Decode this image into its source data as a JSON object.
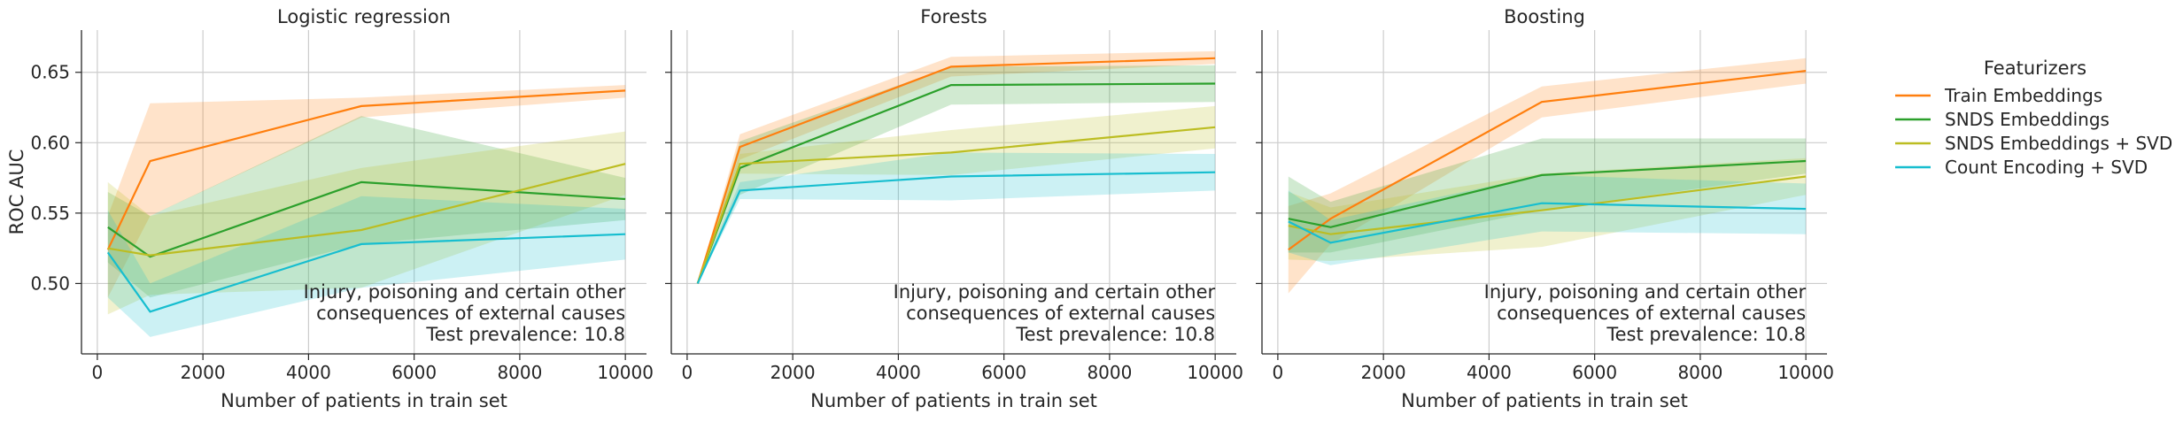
{
  "chart_data": {
    "type": "line",
    "ylabel": "ROC AUC",
    "xlabel": "Number of patients in train set",
    "ylim": [
      0.45,
      0.68
    ],
    "xlim": [
      -300,
      10400
    ],
    "xticks": [
      0,
      2000,
      4000,
      6000,
      8000,
      10000
    ],
    "yticks": [
      0.5,
      0.55,
      0.6,
      0.65
    ],
    "grid": true,
    "x": [
      200,
      1000,
      5000,
      10000
    ],
    "annotation_lines": [
      "Injury, poisoning and certain other",
      "consequences of external causes",
      "Test prevalence: 10.8"
    ],
    "legend": {
      "title": "Featurizers",
      "placement": "right",
      "entries": [
        {
          "name": "Train Embeddings",
          "color": "#ff7f0e"
        },
        {
          "name": "SNDS Embeddings",
          "color": "#2ca02c"
        },
        {
          "name": "SNDS Embeddings + SVD",
          "color": "#bcbd22"
        },
        {
          "name": "Count Encoding + SVD",
          "color": "#17becf"
        }
      ]
    },
    "panels": [
      {
        "title": "Logistic regression",
        "series": [
          {
            "name": "Train Embeddings",
            "values": [
              0.524,
              0.587,
              0.626,
              0.637
            ],
            "lower": [
              0.49,
              0.548,
              0.618,
              0.632
            ],
            "upper": [
              0.548,
              0.628,
              0.632,
              0.641
            ]
          },
          {
            "name": "SNDS Embeddings",
            "values": [
              0.54,
              0.519,
              0.572,
              0.56
            ],
            "lower": [
              0.515,
              0.49,
              0.528,
              0.545
            ],
            "upper": [
              0.565,
              0.548,
              0.619,
              0.575
            ]
          },
          {
            "name": "SNDS Embeddings + SVD",
            "values": [
              0.525,
              0.52,
              0.538,
              0.585
            ],
            "lower": [
              0.478,
              0.492,
              0.497,
              0.563
            ],
            "upper": [
              0.572,
              0.548,
              0.582,
              0.608
            ]
          },
          {
            "name": "Count Encoding + SVD",
            "values": [
              0.522,
              0.48,
              0.528,
              0.535
            ],
            "lower": [
              0.49,
              0.462,
              0.497,
              0.517
            ],
            "upper": [
              0.552,
              0.5,
              0.562,
              0.553
            ]
          }
        ]
      },
      {
        "title": "Forests",
        "series": [
          {
            "name": "Train Embeddings",
            "values": [
              0.5,
              0.597,
              0.654,
              0.66
            ],
            "lower": [
              0.5,
              0.588,
              0.647,
              0.656
            ],
            "upper": [
              0.5,
              0.606,
              0.661,
              0.665
            ]
          },
          {
            "name": "SNDS Embeddings",
            "values": [
              0.5,
              0.582,
              0.641,
              0.642
            ],
            "lower": [
              0.5,
              0.563,
              0.627,
              0.629
            ],
            "upper": [
              0.5,
              0.601,
              0.654,
              0.655
            ]
          },
          {
            "name": "SNDS Embeddings + SVD",
            "values": [
              0.5,
              0.585,
              0.593,
              0.611
            ],
            "lower": [
              0.5,
              0.578,
              0.577,
              0.596
            ],
            "upper": [
              0.5,
              0.592,
              0.609,
              0.626
            ]
          },
          {
            "name": "Count Encoding + SVD",
            "values": [
              0.5,
              0.566,
              0.576,
              0.579
            ],
            "lower": [
              0.5,
              0.56,
              0.559,
              0.566
            ],
            "upper": [
              0.5,
              0.572,
              0.593,
              0.592
            ]
          }
        ]
      },
      {
        "title": "Boosting",
        "series": [
          {
            "name": "Train Embeddings",
            "values": [
              0.524,
              0.546,
              0.629,
              0.651
            ],
            "lower": [
              0.493,
              0.528,
              0.618,
              0.642
            ],
            "upper": [
              0.555,
              0.564,
              0.64,
              0.66
            ]
          },
          {
            "name": "SNDS Embeddings",
            "values": [
              0.546,
              0.54,
              0.577,
              0.587
            ],
            "lower": [
              0.522,
              0.522,
              0.552,
              0.578
            ],
            "upper": [
              0.576,
              0.558,
              0.603,
              0.603
            ]
          },
          {
            "name": "SNDS Embeddings + SVD",
            "values": [
              0.541,
              0.535,
              0.552,
              0.576
            ],
            "lower": [
              0.517,
              0.516,
              0.526,
              0.563
            ],
            "upper": [
              0.565,
              0.554,
              0.578,
              0.589
            ]
          },
          {
            "name": "Count Encoding + SVD",
            "values": [
              0.544,
              0.529,
              0.557,
              0.553
            ],
            "lower": [
              0.522,
              0.513,
              0.537,
              0.535
            ],
            "upper": [
              0.566,
              0.545,
              0.577,
              0.571
            ]
          }
        ]
      }
    ]
  }
}
